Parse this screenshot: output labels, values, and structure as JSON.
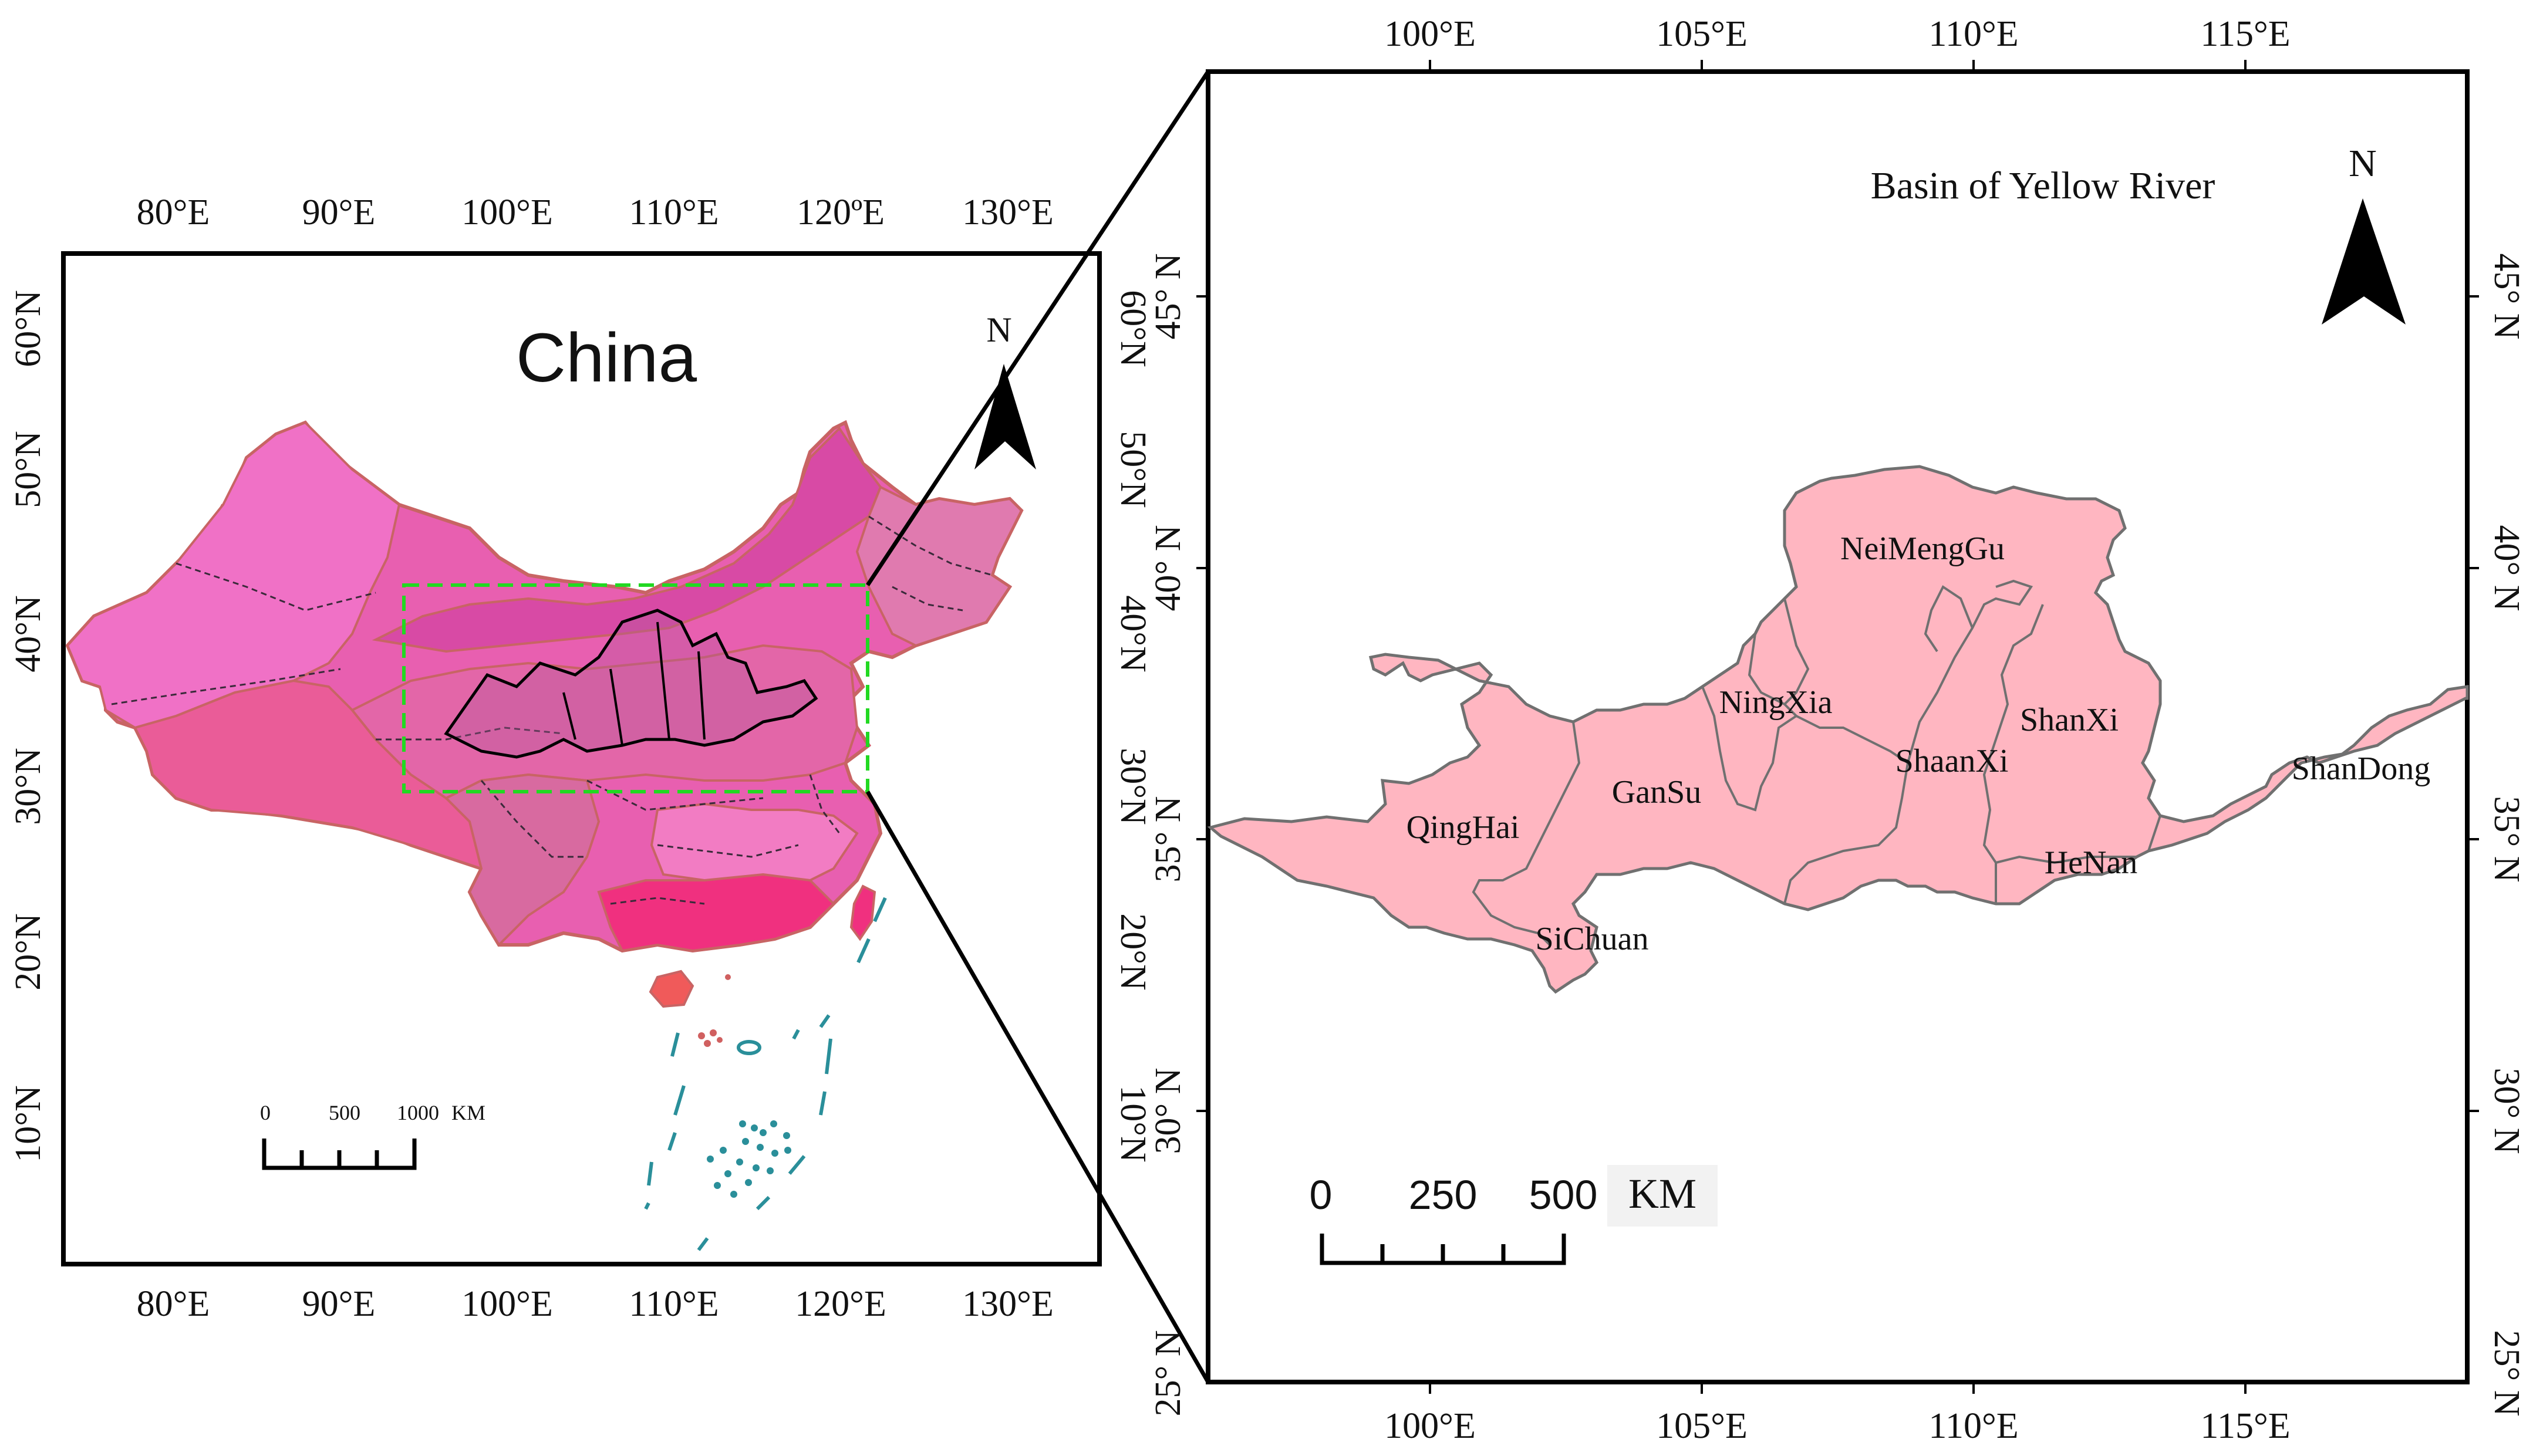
{
  "left_map": {
    "title": "China",
    "north_label": "N",
    "lon_ticks": [
      "80°E",
      "90°E",
      "100°E",
      "110°E",
      "120°E",
      "130°E"
    ],
    "lon_tick_top_variant": "120ºE",
    "lat_ticks": [
      "10°N",
      "20°N",
      "30°N",
      "40°N",
      "50°N",
      "60°N"
    ],
    "scale_bar": {
      "labels": [
        "0",
        "500",
        "1000"
      ],
      "unit": "KM"
    },
    "colors": {
      "frame": "#000000",
      "study_box": "#22d922",
      "land_main": "#e85fb0",
      "land_west": "#f071c6",
      "land_tibet": "#ea5c98",
      "land_south": "#f0307f",
      "border": "#c86464",
      "islands": "#2a8f9a"
    }
  },
  "right_map": {
    "title": "Basin of Yellow River",
    "north_label": "N",
    "lon_ticks": [
      "100°E",
      "105°E",
      "110°E",
      "115°E"
    ],
    "lat_ticks": [
      "25° N",
      "30° N",
      "35° N",
      "40° N",
      "45° N"
    ],
    "provinces": [
      "NeiMengGu",
      "NingXia",
      "ShanXi",
      "ShaanXi",
      "GanSu",
      "QingHai",
      "HeNan",
      "ShanDong",
      "SiChuan"
    ],
    "scale_bar": {
      "labels": [
        "0",
        "250",
        "500"
      ],
      "unit": "KM"
    },
    "colors": {
      "basin_fill": "#ffb6c1",
      "basin_border": "#707070",
      "frame": "#000000"
    }
  }
}
